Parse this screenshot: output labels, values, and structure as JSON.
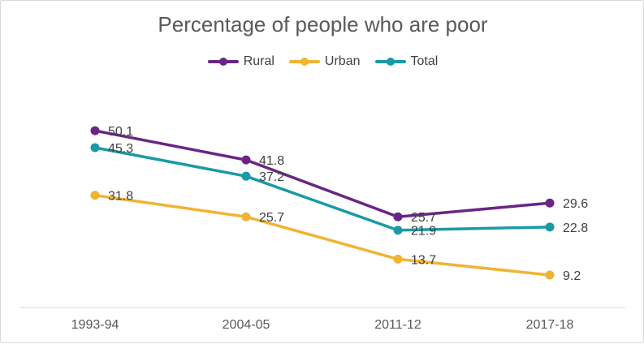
{
  "chart_data": {
    "type": "line",
    "title": "Percentage of people who are poor",
    "categories": [
      "1993-94",
      "2004-05",
      "2011-12",
      "2017-18"
    ],
    "ylim": [
      0,
      60
    ],
    "grid": false,
    "legend_position": "top",
    "series": [
      {
        "name": "Rural",
        "color": "#6a2585",
        "values": [
          50.1,
          41.8,
          25.7,
          29.6
        ],
        "labels": [
          "50.1",
          "41.8",
          "25.7",
          "29.6"
        ]
      },
      {
        "name": "Urban",
        "color": "#f0b432",
        "values": [
          31.8,
          25.7,
          13.7,
          9.2
        ],
        "labels": [
          "31.8",
          "25.7",
          "13.7",
          "9.2"
        ]
      },
      {
        "name": "Total",
        "color": "#1a9aa6",
        "values": [
          45.3,
          37.2,
          21.9,
          22.8
        ],
        "labels": [
          "45.3",
          "37.2",
          "21.9",
          "22.8"
        ]
      }
    ]
  }
}
